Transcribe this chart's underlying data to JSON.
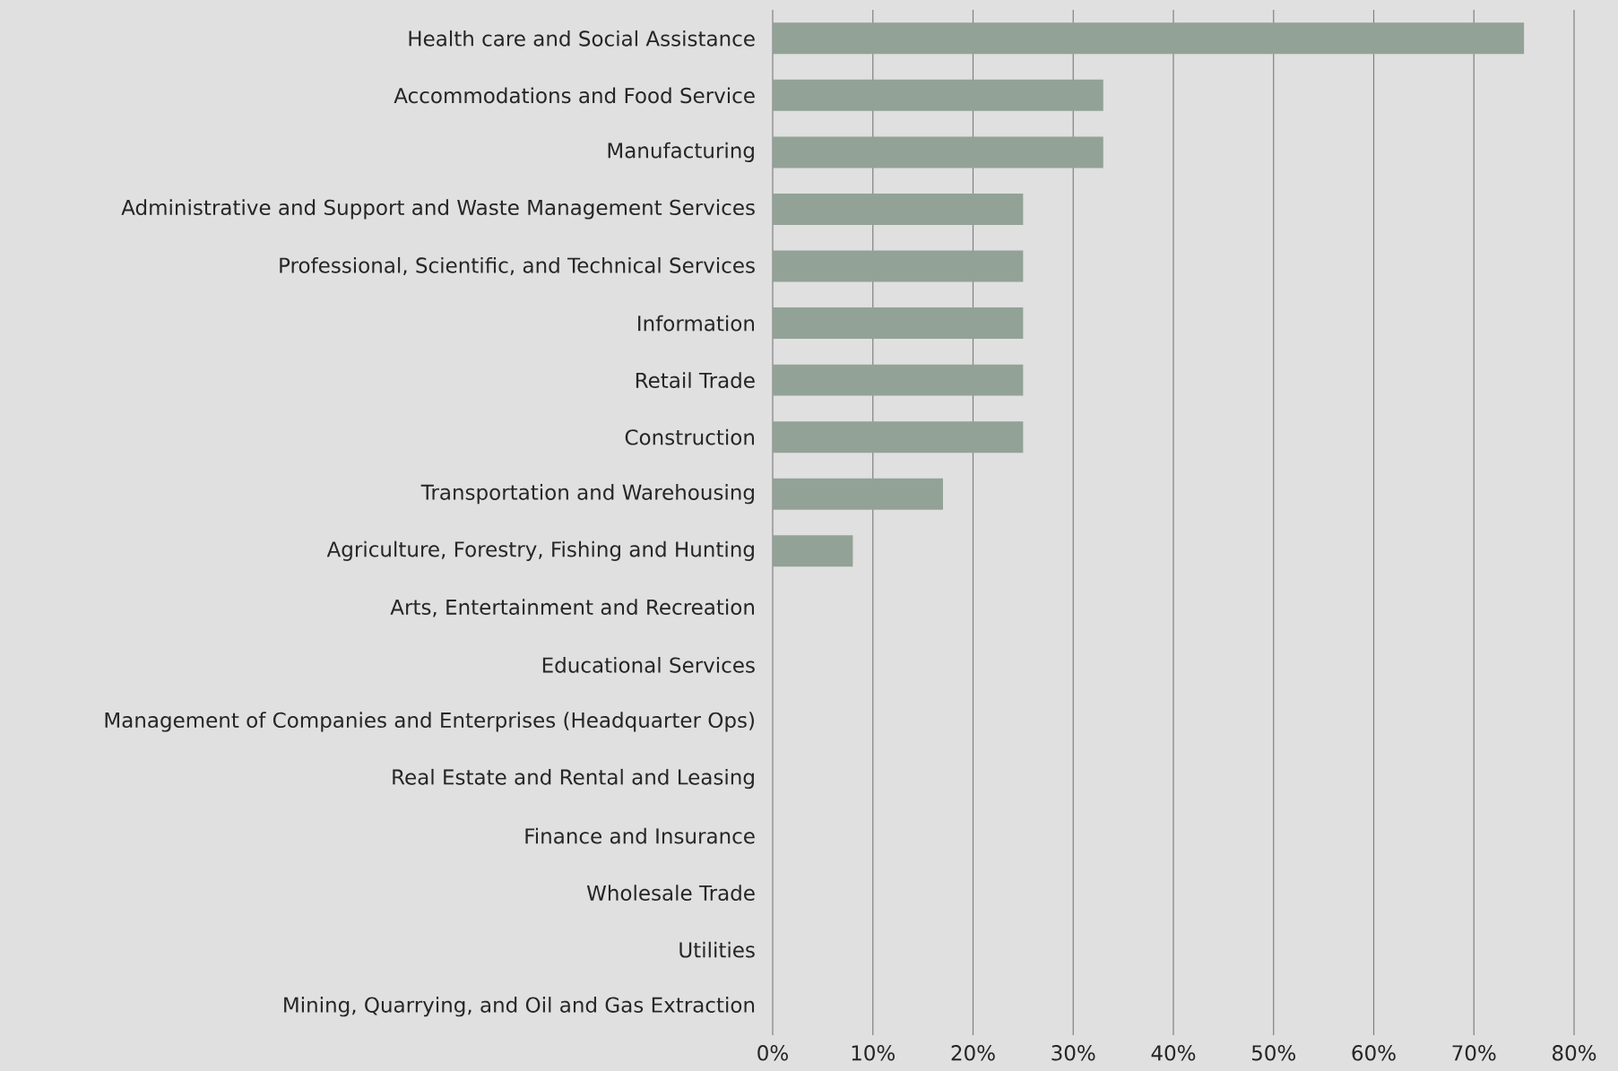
{
  "chart_data": {
    "type": "bar",
    "orientation": "horizontal",
    "categories": [
      "Health care and Social Assistance",
      "Accommodations and Food Service",
      "Manufacturing",
      "Administrative and Support and Waste Management Services",
      "Professional, Scientific, and Technical Services",
      "Information",
      "Retail Trade",
      "Construction",
      "Transportation and Warehousing",
      "Agriculture, Forestry, Fishing and Hunting",
      "Arts, Entertainment and Recreation",
      "Educational Services",
      "Management of Companies and Enterprises (Headquarter Ops)",
      "Real Estate and Rental and Leasing",
      "Finance and Insurance",
      "Wholesale Trade",
      "Utilities",
      "Mining, Quarrying, and Oil and Gas Extraction"
    ],
    "values": [
      75,
      33,
      33,
      25,
      25,
      25,
      25,
      25,
      17,
      8,
      0,
      0,
      0,
      0,
      0,
      0,
      0,
      0
    ],
    "color": "#92a297",
    "xlim": [
      0,
      80
    ],
    "xticks": [
      {
        "value": 0,
        "label": "0%"
      },
      {
        "value": 10,
        "label": "10%"
      },
      {
        "value": 20,
        "label": "20%"
      },
      {
        "value": 30,
        "label": "30%"
      },
      {
        "value": 40,
        "label": "40%"
      },
      {
        "value": 50,
        "label": "50%"
      },
      {
        "value": 60,
        "label": "60%"
      },
      {
        "value": 70,
        "label": "70%"
      },
      {
        "value": 80,
        "label": "80%"
      }
    ],
    "grid": "x"
  }
}
